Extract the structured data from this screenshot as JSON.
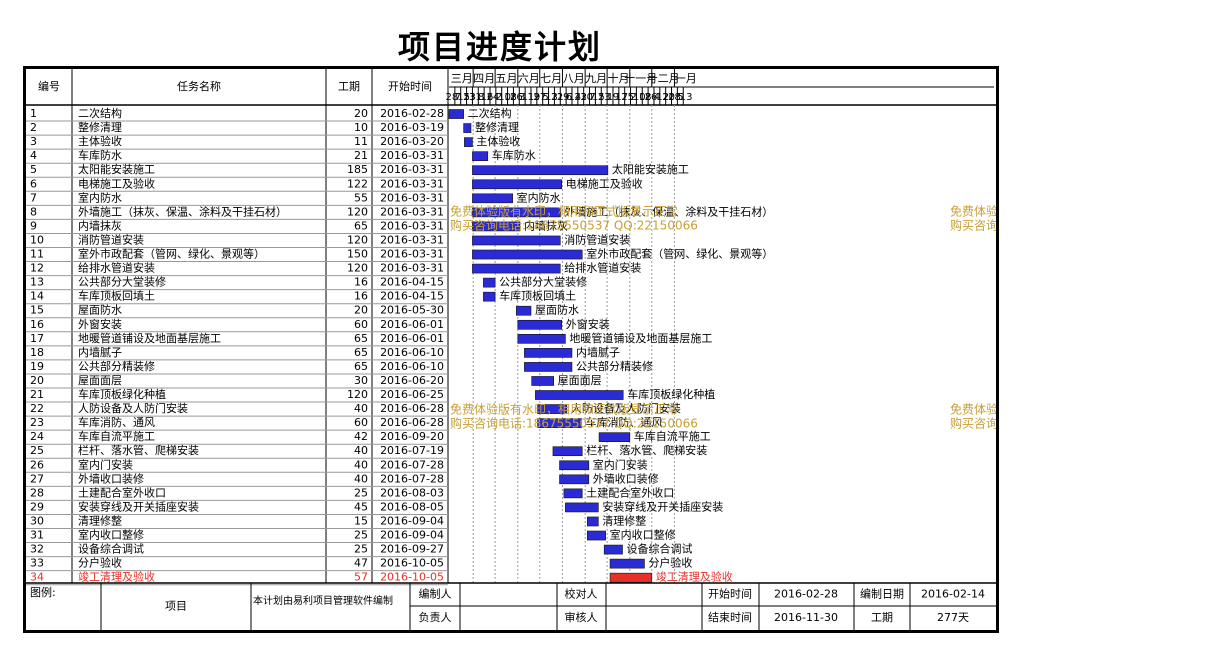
{
  "title": "项目进度计划",
  "table_headers": {
    "no": "编号",
    "name": "任务名称",
    "duration": "工期",
    "start": "开始时间"
  },
  "months": [
    "三月",
    "四月",
    "五月",
    "六月",
    "七月",
    "八月",
    "九月",
    "十月",
    "十一月",
    "十二月",
    "一月"
  ],
  "week_days": [
    "28",
    "7",
    "15",
    "23",
    "31",
    "8",
    "16",
    "24",
    "2",
    "10",
    "18",
    "26",
    "3",
    "11",
    "19",
    "27",
    "5",
    "13",
    "21",
    "29",
    "6",
    "14",
    "22",
    "30",
    "7",
    "15",
    "23",
    "1",
    "9",
    "17",
    "25",
    "2",
    "10",
    "18",
    "26",
    "4",
    "12",
    "20",
    "28",
    "5",
    "13"
  ],
  "watermark": {
    "line1": "免费体验版有水印，相用和正式版显示正常",
    "line2": "购买咨询电话:18675550537 QQ:22150066"
  },
  "footer": {
    "legend_label": "图例:",
    "item_label": "项目",
    "made_by": "本计划由易利项目管理软件编制",
    "editor_label": "编制人",
    "owner_label": "负责人",
    "checker_label": "校对人",
    "reviewer_label": "审核人",
    "start_label": "开始时间",
    "start_value": "2016-02-28",
    "end_label": "结束时间",
    "end_value": "2016-11-30",
    "made_date_label": "编制日期",
    "made_date_value": "2016-02-14",
    "duration_label": "工期",
    "duration_value": "277天"
  },
  "colors": {
    "bar": "#2b2bd6",
    "bar_critical": "#e8302a",
    "text_critical": "#e8302a",
    "watermark": "#c8a035"
  },
  "chart_data": {
    "type": "gantt",
    "axis_start": "2016-02-28",
    "axis_end": "2017-01-19",
    "tasks": [
      {
        "id": "1",
        "name": "二次结构",
        "duration": 20,
        "start": "2016-02-28"
      },
      {
        "id": "2",
        "name": "整修清理",
        "duration": 10,
        "start": "2016-03-19"
      },
      {
        "id": "3",
        "name": "主体验收",
        "duration": 11,
        "start": "2016-03-20"
      },
      {
        "id": "4",
        "name": "车库防水",
        "duration": 21,
        "start": "2016-03-31"
      },
      {
        "id": "5",
        "name": "太阳能安装施工",
        "duration": 185,
        "start": "2016-03-31"
      },
      {
        "id": "6",
        "name": "电梯施工及验收",
        "duration": 122,
        "start": "2016-03-31"
      },
      {
        "id": "7",
        "name": "室内防水",
        "duration": 55,
        "start": "2016-03-31"
      },
      {
        "id": "8",
        "name": "外墙施工（抹灰、保温、涂料及干挂石材）",
        "duration": 120,
        "start": "2016-03-31"
      },
      {
        "id": "9",
        "name": "内墙抹灰",
        "duration": 65,
        "start": "2016-03-31"
      },
      {
        "id": "10",
        "name": "消防管道安装",
        "duration": 120,
        "start": "2016-03-31"
      },
      {
        "id": "11",
        "name": "室外市政配套（管网、绿化、景观等）",
        "duration": 150,
        "start": "2016-03-31"
      },
      {
        "id": "12",
        "name": "给排水管道安装",
        "duration": 120,
        "start": "2016-03-31"
      },
      {
        "id": "13",
        "name": "公共部分大堂装修",
        "duration": 16,
        "start": "2016-04-15"
      },
      {
        "id": "14",
        "name": "车库顶板回填土",
        "duration": 16,
        "start": "2016-04-15"
      },
      {
        "id": "15",
        "name": "屋面防水",
        "duration": 20,
        "start": "2016-05-30"
      },
      {
        "id": "16",
        "name": "外窗安装",
        "duration": 60,
        "start": "2016-06-01"
      },
      {
        "id": "17",
        "name": "地暖管道铺设及地面基层施工",
        "duration": 65,
        "start": "2016-06-01"
      },
      {
        "id": "18",
        "name": "内墙腻子",
        "duration": 65,
        "start": "2016-06-10"
      },
      {
        "id": "19",
        "name": "公共部分精装修",
        "duration": 65,
        "start": "2016-06-10"
      },
      {
        "id": "20",
        "name": "屋面面层",
        "duration": 30,
        "start": "2016-06-20"
      },
      {
        "id": "21",
        "name": "车库顶板绿化种植",
        "duration": 120,
        "start": "2016-06-25"
      },
      {
        "id": "22",
        "name": "人防设备及人防门安装",
        "duration": 40,
        "start": "2016-06-28"
      },
      {
        "id": "23",
        "name": "车库消防、通风",
        "duration": 60,
        "start": "2016-06-28"
      },
      {
        "id": "24",
        "name": "车库自流平施工",
        "duration": 42,
        "start": "2016-09-20"
      },
      {
        "id": "25",
        "name": "栏杆、落水管、爬梯安装",
        "duration": 40,
        "start": "2016-07-19"
      },
      {
        "id": "26",
        "name": "室内门安装",
        "duration": 40,
        "start": "2016-07-28"
      },
      {
        "id": "27",
        "name": "外墙收口装修",
        "duration": 40,
        "start": "2016-07-28"
      },
      {
        "id": "28",
        "name": "土建配合室外收口",
        "duration": 25,
        "start": "2016-08-03"
      },
      {
        "id": "29",
        "name": "安装穿线及开关插座安装",
        "duration": 45,
        "start": "2016-08-05"
      },
      {
        "id": "30",
        "name": "清理修整",
        "duration": 15,
        "start": "2016-09-04"
      },
      {
        "id": "31",
        "name": "室内收口整修",
        "duration": 25,
        "start": "2016-09-04"
      },
      {
        "id": "32",
        "name": "设备综合调试",
        "duration": 25,
        "start": "2016-09-27"
      },
      {
        "id": "33",
        "name": "分户验收",
        "duration": 47,
        "start": "2016-10-05"
      },
      {
        "id": "34",
        "name": "竣工清理及验收",
        "duration": 57,
        "start": "2016-10-05",
        "critical": true
      }
    ]
  }
}
